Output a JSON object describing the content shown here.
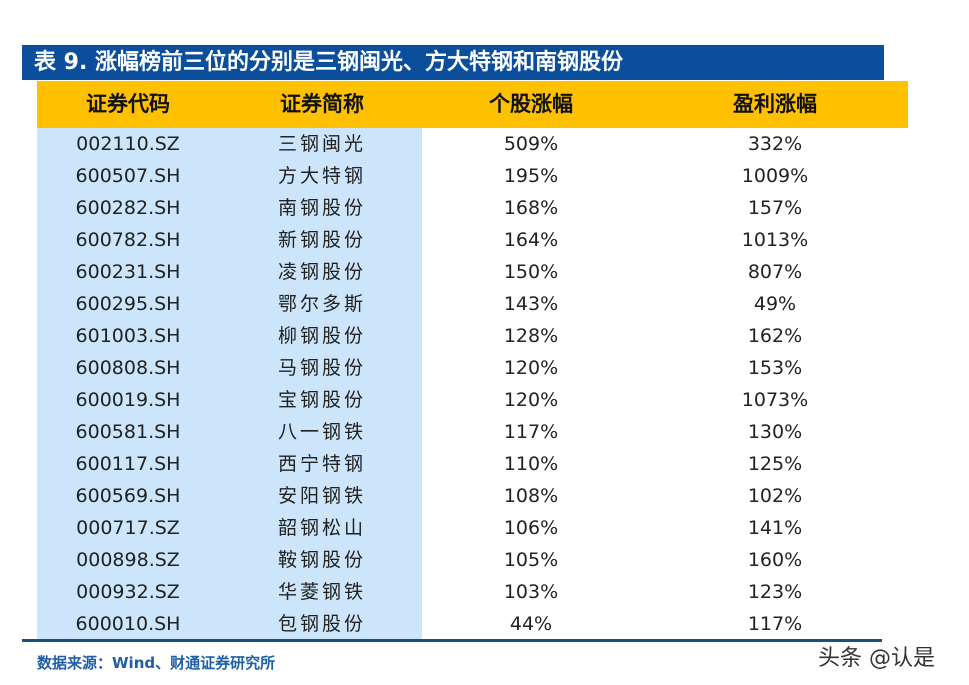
{
  "title": "表 9. 涨幅榜前三位的分别是三钢闽光、方大特钢和南钢股份",
  "headers": [
    "证券代码",
    "证券简称",
    "个股涨幅",
    "盈利涨幅"
  ],
  "rows": [
    [
      "002110.SZ",
      "三钢闽光",
      "509%",
      "332%"
    ],
    [
      "600507.SH",
      "方大特钢",
      "195%",
      "1009%"
    ],
    [
      "600282.SH",
      "南钢股份",
      "168%",
      "157%"
    ],
    [
      "600782.SH",
      "新钢股份",
      "164%",
      "1013%"
    ],
    [
      "600231.SH",
      "凌钢股份",
      "150%",
      "807%"
    ],
    [
      "600295.SH",
      "鄂尔多斯",
      "143%",
      "49%"
    ],
    [
      "601003.SH",
      "柳钢股份",
      "128%",
      "162%"
    ],
    [
      "600808.SH",
      "马钢股份",
      "120%",
      "153%"
    ],
    [
      "600019.SH",
      "宝钢股份",
      "120%",
      "1073%"
    ],
    [
      "600581.SH",
      "八一钢铁",
      "117%",
      "130%"
    ],
    [
      "600117.SH",
      "西宁特钢",
      "110%",
      "125%"
    ],
    [
      "600569.SH",
      "安阳钢铁",
      "108%",
      "102%"
    ],
    [
      "000717.SZ",
      "韶钢松山",
      "106%",
      "141%"
    ],
    [
      "000898.SZ",
      "鞍钢股份",
      "105%",
      "160%"
    ],
    [
      "000932.SZ",
      "华菱钢铁",
      "103%",
      "123%"
    ],
    [
      "600010.SH",
      "包钢股份",
      "44%",
      "117%"
    ]
  ],
  "source": "数据来源：Wind、财通证券研究所",
  "watermark": "头条 @认是",
  "colors": {
    "title_bg": "#0b4f9c",
    "header_bg": "#ffc000",
    "code_col_bg": "#cce5fa"
  }
}
